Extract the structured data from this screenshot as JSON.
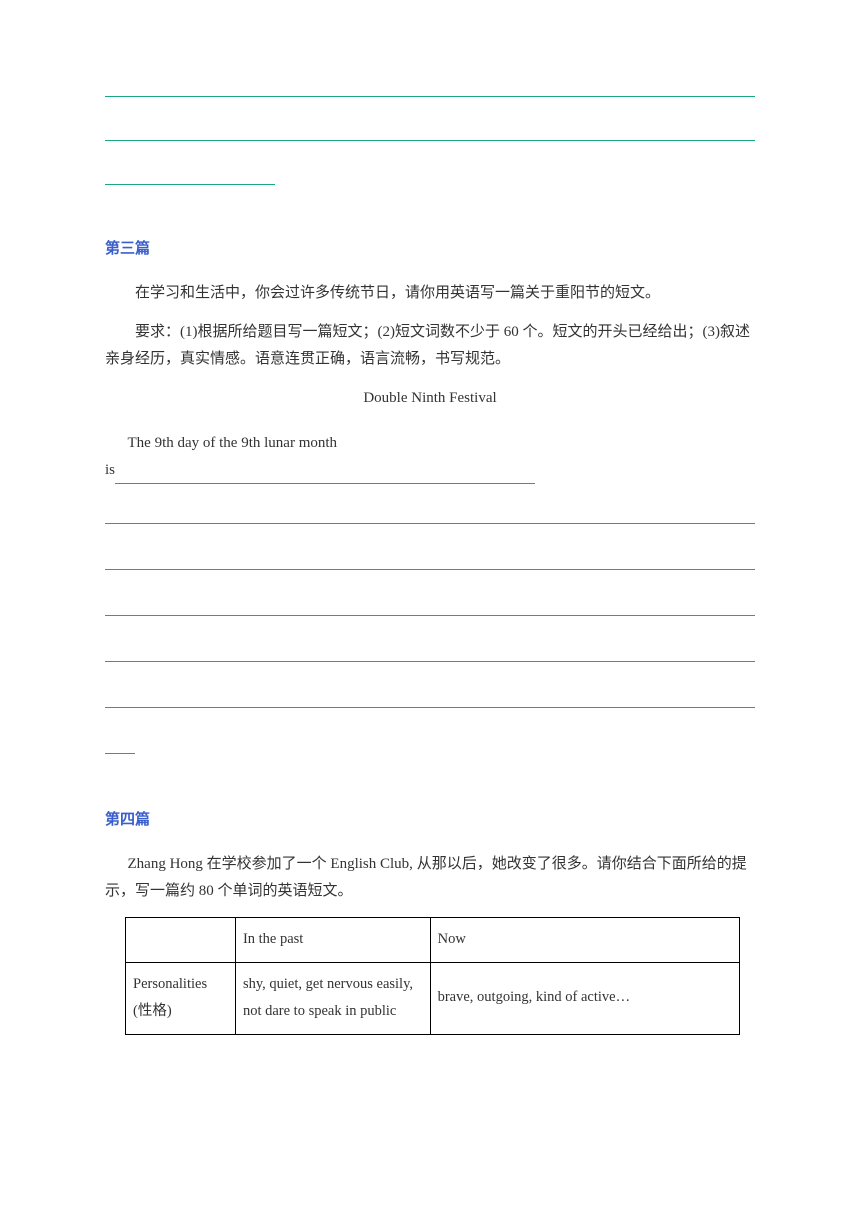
{
  "blank_line_color": "#1ba784",
  "section3": {
    "heading": "第三篇",
    "para1": "在学习和生活中，你会过许多传统节日，请你用英语写一篇关于重阳节的短文。",
    "para2": "要求：(1)根据所给题目写一篇短文；(2)短文词数不少于 60 个。短文的开头已经给出；(3)叙述亲身经历，真实情感。语意连贯正确，语言流畅，书写规范。",
    "title": "Double Ninth Festival",
    "starter_line1": "The 9th day of the 9th lunar month",
    "starter_line2_prefix": "is"
  },
  "section4": {
    "heading": "第四篇",
    "para1": "Zhang Hong 在学校参加了一个 English Club, 从那以后，她改变了很多。请你结合下面所给的提示，写一篇约 80 个单词的英语短文。",
    "table": {
      "headers": [
        "",
        "In the past",
        "Now"
      ],
      "rows": [
        {
          "label": "Personalities",
          "label_cn": "(性格)",
          "past": "shy, quiet, get nervous easily,\nnot dare to speak in public",
          "now": "brave, outgoing, kind of active…"
        }
      ]
    }
  }
}
